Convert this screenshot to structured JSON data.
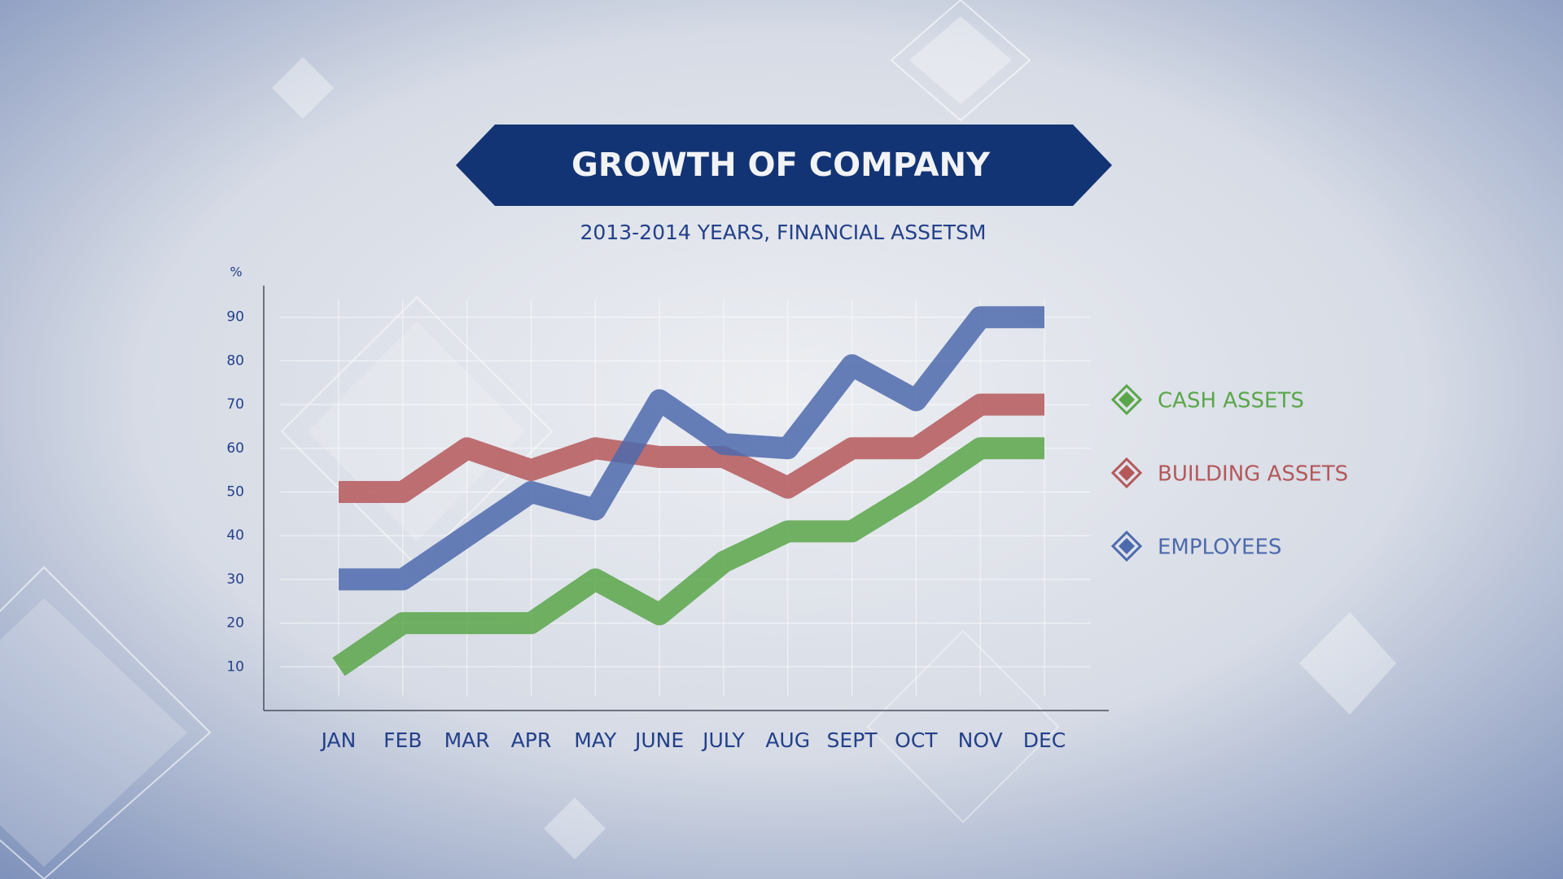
{
  "chart_data": {
    "type": "line",
    "title": "GROWTH OF COMPANY",
    "subtitle": "2013-2014 YEARS, FINANCIAL ASSETSM",
    "y_axis_label": "%",
    "categories": [
      "JAN",
      "FEB",
      "MAR",
      "APR",
      "MAY",
      "JUNE",
      "JULY",
      "AUG",
      "SEPT",
      "OCT",
      "NOV",
      "DEC"
    ],
    "series": [
      {
        "name": "CASH ASSETS",
        "color": "#5aa64a",
        "values": [
          10,
          20,
          20,
          20,
          30,
          22,
          34,
          41,
          41,
          50,
          60,
          60
        ]
      },
      {
        "name": "BUILDING ASSETS",
        "color": "#b5585a",
        "values": [
          50,
          50,
          60,
          55,
          60,
          58,
          58,
          51,
          60,
          60,
          70,
          70
        ]
      },
      {
        "name": "EMPLOYEES",
        "color": "#4d6aad",
        "values": [
          30,
          30,
          40,
          50,
          46,
          71,
          61,
          60,
          79,
          71,
          90,
          90
        ]
      }
    ],
    "ylim": [
      0,
      100
    ],
    "yticks": [
      10,
      20,
      30,
      40,
      50,
      60,
      70,
      80,
      90
    ],
    "grid": true,
    "legend": "right"
  }
}
